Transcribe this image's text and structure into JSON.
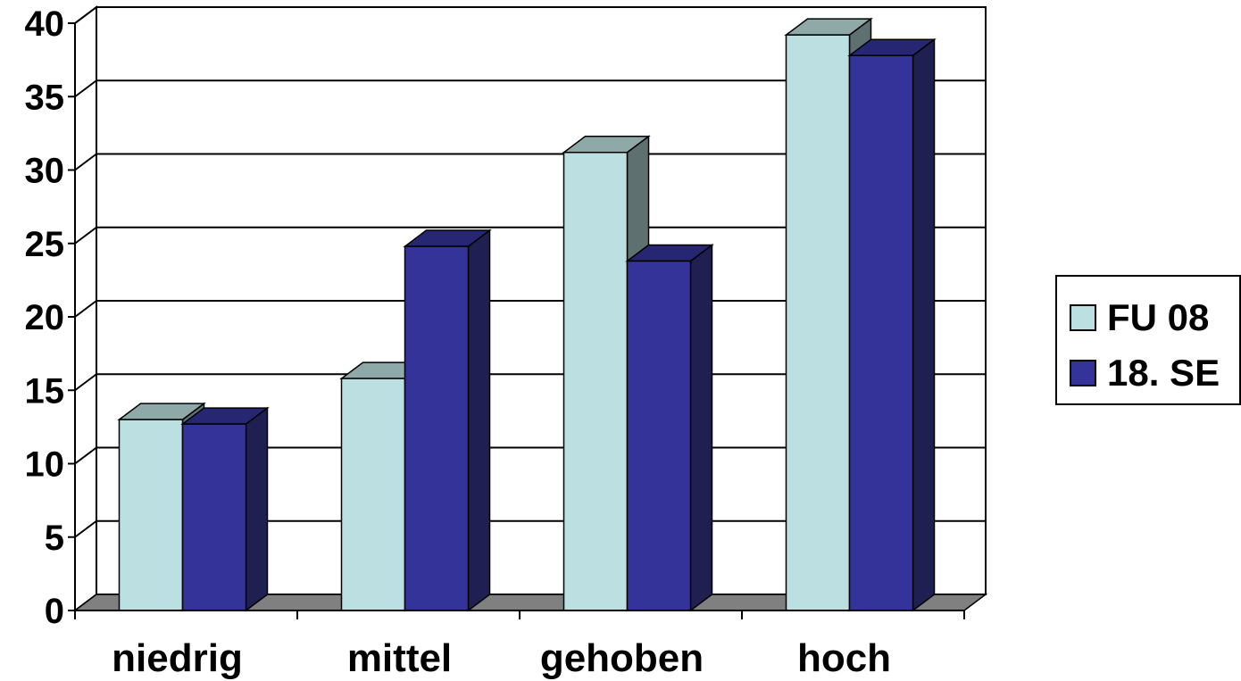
{
  "chart_data": {
    "type": "bar",
    "categories": [
      "niedrig",
      "mittel",
      "gehoben",
      "hoch"
    ],
    "series": [
      {
        "name": "FU 08",
        "values": [
          13,
          15.8,
          31.2,
          39.2
        ],
        "color": "#bce0e2"
      },
      {
        "name": "18. SE",
        "values": [
          12.7,
          24.8,
          23.8,
          37.8
        ],
        "color": "#333399"
      }
    ],
    "yticks": [
      "0",
      "5",
      "10",
      "15",
      "20",
      "25",
      "30",
      "35",
      "40"
    ],
    "ylim": [
      0,
      40
    ],
    "grid": true,
    "legend_position": "right",
    "three_d": true
  }
}
